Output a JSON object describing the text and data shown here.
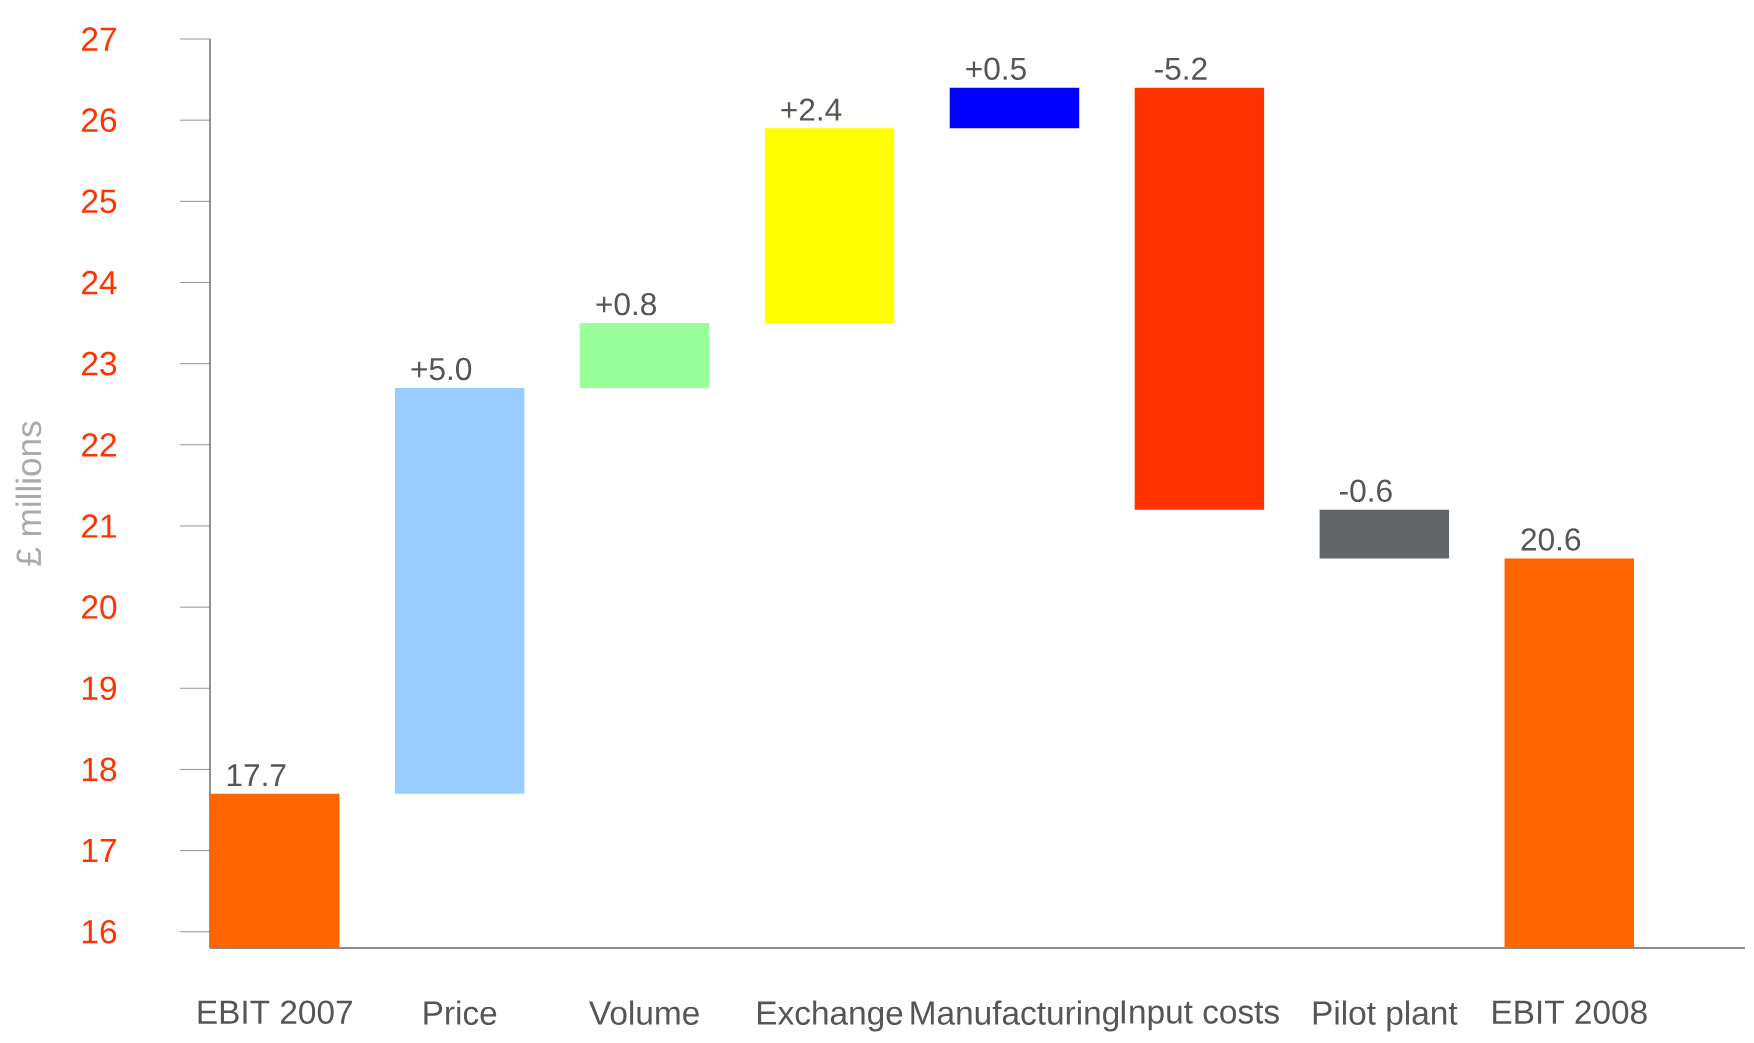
{
  "chart_data": {
    "type": "bar",
    "ylabel": "£ millions",
    "categories": [
      "EBIT 2007",
      "Price",
      "Volume",
      "Exchange",
      "Manufacturing",
      "Input costs",
      "Pilot plant",
      "EBIT 2008"
    ],
    "base": [
      15.8,
      17.7,
      22.7,
      23.5,
      25.9,
      26.4,
      21.2,
      15.8
    ],
    "values": [
      1.9,
      5.0,
      0.8,
      2.4,
      0.5,
      -5.2,
      -0.6,
      4.8
    ],
    "value_labels": [
      "17.7",
      "+5.0",
      "+0.8",
      "+2.4",
      "+0.5",
      "-5.2",
      "-0.6",
      "20.6"
    ],
    "colors": [
      "#ff6600",
      "#99ccff",
      "#99ff99",
      "#ffff00",
      "#0000ff",
      "#ff3300",
      "#636668",
      "#ff6600"
    ],
    "ylim": [
      15.8,
      27
    ],
    "yticks": [
      16,
      17,
      18,
      19,
      20,
      21,
      22,
      23,
      24,
      25,
      26,
      27
    ],
    "grid": false
  }
}
